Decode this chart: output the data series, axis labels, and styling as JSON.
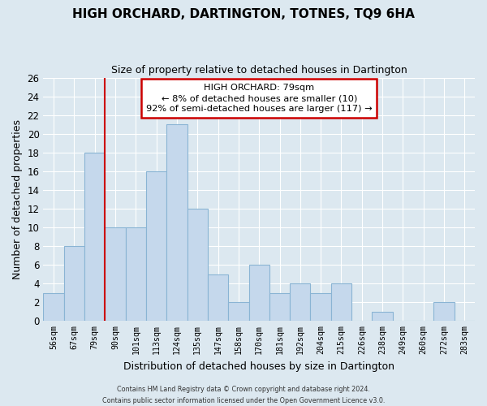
{
  "title": "HIGH ORCHARD, DARTINGTON, TOTNES, TQ9 6HA",
  "subtitle": "Size of property relative to detached houses in Dartington",
  "xlabel": "Distribution of detached houses by size in Dartington",
  "ylabel": "Number of detached properties",
  "bar_labels": [
    "56sqm",
    "67sqm",
    "79sqm",
    "90sqm",
    "101sqm",
    "113sqm",
    "124sqm",
    "135sqm",
    "147sqm",
    "158sqm",
    "170sqm",
    "181sqm",
    "192sqm",
    "204sqm",
    "215sqm",
    "226sqm",
    "238sqm",
    "249sqm",
    "260sqm",
    "272sqm",
    "283sqm"
  ],
  "bar_values": [
    3,
    8,
    18,
    10,
    10,
    16,
    21,
    12,
    5,
    2,
    6,
    3,
    4,
    3,
    4,
    0,
    1,
    0,
    0,
    2,
    0
  ],
  "bar_color": "#c5d8ec",
  "bar_edge_color": "#8ab4d4",
  "highlight_index": 2,
  "highlight_line_color": "#cc0000",
  "ylim": [
    0,
    26
  ],
  "yticks": [
    0,
    2,
    4,
    6,
    8,
    10,
    12,
    14,
    16,
    18,
    20,
    22,
    24,
    26
  ],
  "annotation_line1": "HIGH ORCHARD: 79sqm",
  "annotation_line2": "← 8% of detached houses are smaller (10)",
  "annotation_line3": "92% of semi-detached houses are larger (117) →",
  "annotation_box_edge_color": "#cc0000",
  "annotation_box_face_color": "#ffffff",
  "footer_line1": "Contains HM Land Registry data © Crown copyright and database right 2024.",
  "footer_line2": "Contains public sector information licensed under the Open Government Licence v3.0.",
  "background_color": "#dce8f0",
  "plot_bg_color": "#dce8f0",
  "grid_color": "#ffffff"
}
